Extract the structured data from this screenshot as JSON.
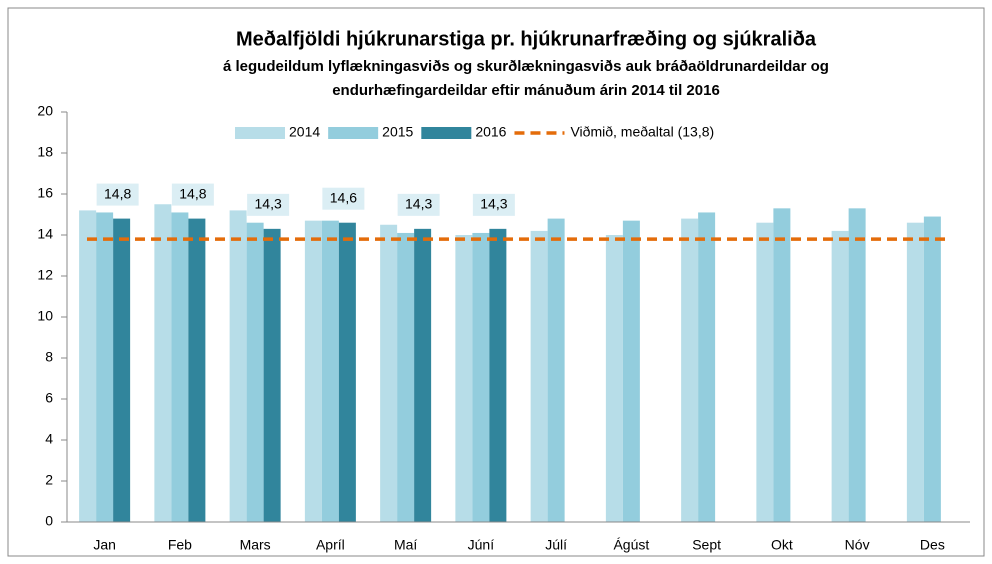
{
  "chart_data": {
    "type": "bar",
    "title": "Meðalfjöldi hjúkrunarstiga pr. hjúkrunarfræðing og sjúkraliða",
    "subtitle": [
      "á legudeildum lyflækningasviðs og skurðlækningasviðs auk bráðaöldrunardeildar og",
      "endurhæfingardeildar eftir mánuðum árin 2014  til 2016"
    ],
    "categories": [
      "Jan",
      "Feb",
      "Mars",
      "Apríl",
      "Maí",
      "Júní",
      "Júlí",
      "Ágúst",
      "Sept",
      "Okt",
      "Nóv",
      "Des"
    ],
    "series": [
      {
        "name": "2014",
        "color": "#b7dde8",
        "values": [
          15.2,
          15.5,
          15.2,
          14.7,
          14.5,
          14.0,
          14.2,
          14.0,
          14.8,
          14.6,
          14.2,
          14.6
        ]
      },
      {
        "name": "2015",
        "color": "#93cddd",
        "values": [
          15.1,
          15.1,
          14.6,
          14.7,
          14.1,
          14.1,
          14.8,
          14.7,
          15.1,
          15.3,
          15.3,
          14.9
        ]
      },
      {
        "name": "2016",
        "color": "#31859c",
        "values": [
          14.8,
          14.8,
          14.3,
          14.6,
          14.3,
          14.3,
          null,
          null,
          null,
          null,
          null,
          null
        ],
        "value_labels": [
          "14,8",
          "14,8",
          "14,3",
          "14,6",
          "14,3",
          "14,3",
          null,
          null,
          null,
          null,
          null,
          null
        ]
      }
    ],
    "reference_line": {
      "name": "Viðmið, meðaltal (13,8)",
      "value": 13.8,
      "color": "#e46c0a"
    },
    "ylim": [
      0,
      20
    ],
    "yticks": [
      0,
      2,
      4,
      6,
      8,
      10,
      12,
      14,
      16,
      18,
      20
    ],
    "grid": false,
    "legend": "top"
  }
}
